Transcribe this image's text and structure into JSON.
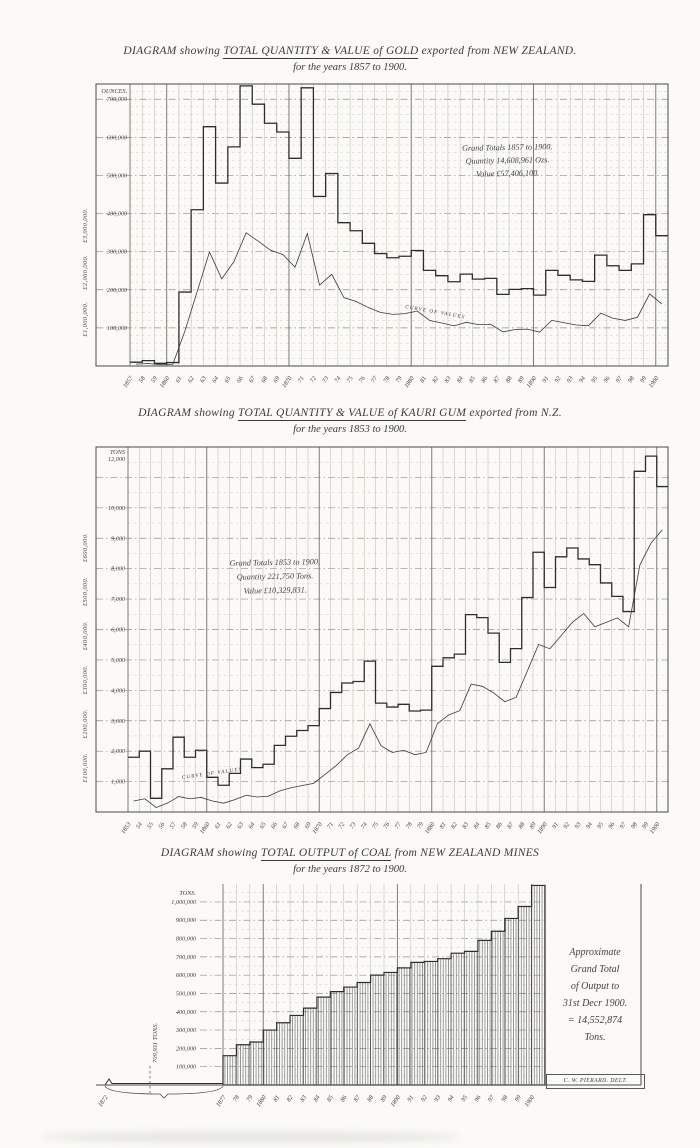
{
  "palette": {
    "paper": "#fbfaf6",
    "ink": "#3b3b38",
    "grid_light": "#bcbcb7",
    "grid_major": "#8f8f8a"
  },
  "chart_data": [
    {
      "type": "line",
      "id": "gold",
      "title": {
        "pre": "DIAGRAM showing ",
        "underline": "TOTAL QUANTITY & VALUE of GOLD",
        "post": " exported from NEW ZEALAND.",
        "sub": "for the years 1857 to 1900."
      },
      "annotation": {
        "l1": "Grand Totals 1857 to 1900.",
        "l2": "Quantity 14,608,961 Ozs.",
        "l3": "Value £57,406,100."
      },
      "curve_label": "CURVE OF VALUES",
      "y_axis": {
        "unit": "OUNCES.",
        "ticks": [
          {
            "v": 700000,
            "label": "700,000"
          },
          {
            "v": 600000,
            "label": "600,000"
          },
          {
            "v": 500000,
            "label": "500,000"
          },
          {
            "v": 400000,
            "label": "400,000"
          },
          {
            "v": 300000,
            "label": "300,000"
          },
          {
            "v": 200000,
            "label": "200,000"
          },
          {
            "v": 100000,
            "label": "100,000"
          }
        ],
        "ylim": [
          0,
          740000
        ]
      },
      "value_axis": {
        "labels": [
          {
            "gbp": 3000000,
            "label": "£3,000,000."
          },
          {
            "gbp": 2000000,
            "label": "£2,000,000."
          },
          {
            "gbp": 1000000,
            "label": "£1,000,000."
          }
        ]
      },
      "years_labels": [
        "1857",
        "58",
        "59",
        "1860",
        "61",
        "62",
        "63",
        "64",
        "65",
        "66",
        "67",
        "68",
        "69",
        "1870",
        "71",
        "72",
        "73",
        "74",
        "75",
        "76",
        "77",
        "78",
        "79",
        "1880",
        "81",
        "82",
        "83",
        "84",
        "85",
        "86",
        "87",
        "88",
        "89",
        "1890",
        "91",
        "92",
        "93",
        "94",
        "95",
        "96",
        "97",
        "98",
        "99",
        "1900"
      ],
      "quantity_oz": [
        10000,
        14000,
        7000,
        9000,
        194000,
        410000,
        628000,
        480000,
        575000,
        735000,
        687000,
        637000,
        614000,
        545000,
        730000,
        445000,
        505000,
        376000,
        355000,
        322000,
        295000,
        284000,
        288000,
        303000,
        251000,
        237000,
        221000,
        241000,
        228000,
        230000,
        188000,
        201000,
        203000,
        186000,
        251000,
        238000,
        226000,
        222000,
        291000,
        263000,
        251000,
        268000,
        397000,
        342000
      ],
      "value_gbp": [
        40000,
        54000,
        28000,
        35000,
        752000,
        1591000,
        2433000,
        1860000,
        2226000,
        2844000,
        2660000,
        2469000,
        2379000,
        2110000,
        2827000,
        1725000,
        1957000,
        1458000,
        1376000,
        1247000,
        1142000,
        1101000,
        1117000,
        1173000,
        971000,
        918000,
        856000,
        932000,
        882000,
        891000,
        727000,
        779000,
        787000,
        721000,
        973000,
        922000,
        875000,
        860000,
        1127000,
        1018000,
        972000,
        1038000,
        1538000,
        1324000
      ]
    },
    {
      "type": "line",
      "id": "kauri-gum",
      "title": {
        "pre": "DIAGRAM showing ",
        "underline": "TOTAL QUANTITY & VALUE of KAURI GUM",
        "post": " exported from N.Z.",
        "sub": "for the years 1853 to 1900."
      },
      "annotation": {
        "l1": "Grand Totals 1853 to 1900.",
        "l2": "Quantity 221,750 Tons.",
        "l3": "Value £10,329,831."
      },
      "curve_label": "CURVE OF VALUES",
      "y_axis": {
        "unit": "TONS",
        "top_label": "12,000",
        "ticks": [
          {
            "v": 10000,
            "label": "10,000"
          },
          {
            "v": 9000,
            "label": "9,000"
          },
          {
            "v": 8000,
            "label": "8,000"
          },
          {
            "v": 7000,
            "label": "7,000"
          },
          {
            "v": 6000,
            "label": "6,000"
          },
          {
            "v": 5000,
            "label": "5,000"
          },
          {
            "v": 4000,
            "label": "4,000"
          },
          {
            "v": 3000,
            "label": "3,000"
          },
          {
            "v": 2000,
            "label": "2,000"
          },
          {
            "v": 1000,
            "label": "1,000"
          }
        ],
        "ylim": [
          0,
          12000
        ]
      },
      "value_axis": {
        "labels": [
          {
            "gbp": 600000,
            "label": "£600,000."
          },
          {
            "gbp": 500000,
            "label": "£500,000."
          },
          {
            "gbp": 400000,
            "label": "£400,000."
          },
          {
            "gbp": 300000,
            "label": "£300,000."
          },
          {
            "gbp": 200000,
            "label": "£200,000."
          },
          {
            "gbp": 100000,
            "label": "£100,000."
          }
        ]
      },
      "years_labels": [
        "1853",
        "54",
        "55",
        "56",
        "57",
        "58",
        "59",
        "1860",
        "61",
        "62",
        "63",
        "64",
        "65",
        "66",
        "67",
        "68",
        "69",
        "1870",
        "71",
        "72",
        "73",
        "74",
        "75",
        "76",
        "77",
        "78",
        "79",
        "1880",
        "81",
        "82",
        "83",
        "84",
        "85",
        "86",
        "87",
        "88",
        "89",
        "1890",
        "91",
        "92",
        "93",
        "94",
        "95",
        "96",
        "97",
        "98",
        "99",
        "1900"
      ],
      "quantity_tons": [
        1800,
        2000,
        450,
        1420,
        2460,
        1800,
        2030,
        1140,
        880,
        1270,
        1740,
        1460,
        1570,
        2190,
        2490,
        2680,
        2840,
        3400,
        3930,
        4240,
        4290,
        4960,
        3580,
        3450,
        3540,
        3320,
        3350,
        4790,
        5070,
        5190,
        6490,
        6390,
        5880,
        4920,
        5370,
        7050,
        8540,
        7380,
        8390,
        8680,
        8320,
        8130,
        7530,
        7090,
        6590,
        11200,
        11700,
        10700
      ],
      "value_gbp": [
        25000,
        30000,
        10000,
        20000,
        35000,
        30000,
        33000,
        25000,
        20000,
        28000,
        38000,
        34000,
        36000,
        48000,
        55000,
        60000,
        65000,
        85000,
        105000,
        130000,
        145000,
        200000,
        150000,
        135000,
        140000,
        130000,
        135000,
        200000,
        220000,
        230000,
        290000,
        285000,
        270000,
        250000,
        260000,
        320000,
        380000,
        370000,
        400000,
        430000,
        450000,
        420000,
        430000,
        440000,
        420000,
        560000,
        610000,
        640000
      ]
    },
    {
      "type": "area",
      "id": "coal",
      "title": {
        "pre": "DIAGRAM showing ",
        "underline": "TOTAL OUTPUT of COAL",
        "post": " from NEW ZEALAND MINES",
        "sub": "for the years 1872 to 1900."
      },
      "annotation": {
        "l1": "Approximate",
        "l2": "Grand Total",
        "l3": "of Output to",
        "l4": "31st Decr 1900.",
        "l5": "= 14,552,874",
        "l6": "Tons."
      },
      "side_note": "709,931 TONS.",
      "signature": "C. W. PIERARD. DELT.",
      "start_year_label": "1872",
      "y_axis": {
        "unit": "TONS.",
        "ticks": [
          {
            "v": 1000000,
            "label": "1,000,000"
          },
          {
            "v": 900000,
            "label": "900,000"
          },
          {
            "v": 800000,
            "label": "800,000"
          },
          {
            "v": 700000,
            "label": "700,000"
          },
          {
            "v": 600000,
            "label": "600,000"
          },
          {
            "v": 500000,
            "label": "500,000"
          },
          {
            "v": 400000,
            "label": "400,000"
          },
          {
            "v": 300000,
            "label": "300,000"
          },
          {
            "v": 200000,
            "label": "200,000"
          },
          {
            "v": 100000,
            "label": "100,000"
          }
        ],
        "ylim": [
          0,
          1098000
        ]
      },
      "years_labels": [
        "1877",
        "78",
        "79",
        "1880",
        "81",
        "82",
        "83",
        "84",
        "85",
        "86",
        "87",
        "88",
        "89",
        "1890",
        "91",
        "92",
        "93",
        "94",
        "95",
        "96",
        "97",
        "98",
        "99",
        "1900"
      ],
      "output_tons": [
        160000,
        220000,
        235000,
        300000,
        340000,
        380000,
        420000,
        480000,
        510000,
        535000,
        560000,
        600000,
        615000,
        640000,
        670000,
        675000,
        690000,
        720000,
        730000,
        790000,
        840000,
        910000,
        975000,
        1090000
      ],
      "pre_period_tons": 8000
    }
  ]
}
